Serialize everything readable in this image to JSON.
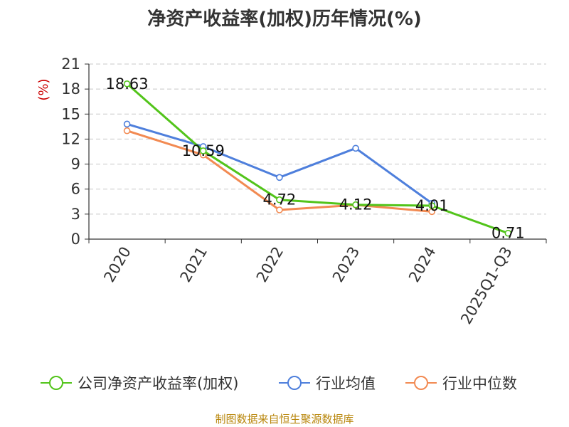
{
  "title": "净资产收益率(加权)历年情况(%)",
  "footer": "制图数据来自恒生聚源数据库",
  "chart_data": {
    "type": "line",
    "categories": [
      "2020",
      "2021",
      "2022",
      "2023",
      "2024",
      "2025Q1-Q3"
    ],
    "ylabel": "(%)",
    "ylim": [
      0,
      21
    ],
    "yticks": [
      0,
      3,
      6,
      9,
      12,
      15,
      18,
      21
    ],
    "grid": true,
    "legend_position": "bottom",
    "series": [
      {
        "name": "公司净资产收益率(加权)",
        "color": "#52c41a",
        "values": [
          18.63,
          10.59,
          4.72,
          4.12,
          4.01,
          0.71
        ],
        "labels": [
          "18.63",
          "10.59",
          "4.72",
          "4.12",
          "4.01",
          "0.71"
        ]
      },
      {
        "name": "行业均值",
        "color": "#4e7fdc",
        "values": [
          13.8,
          11.1,
          7.4,
          10.9,
          4.3,
          null
        ]
      },
      {
        "name": "行业中位数",
        "color": "#f28a52",
        "values": [
          13.0,
          10.1,
          3.5,
          4.1,
          3.3,
          null
        ]
      }
    ]
  }
}
